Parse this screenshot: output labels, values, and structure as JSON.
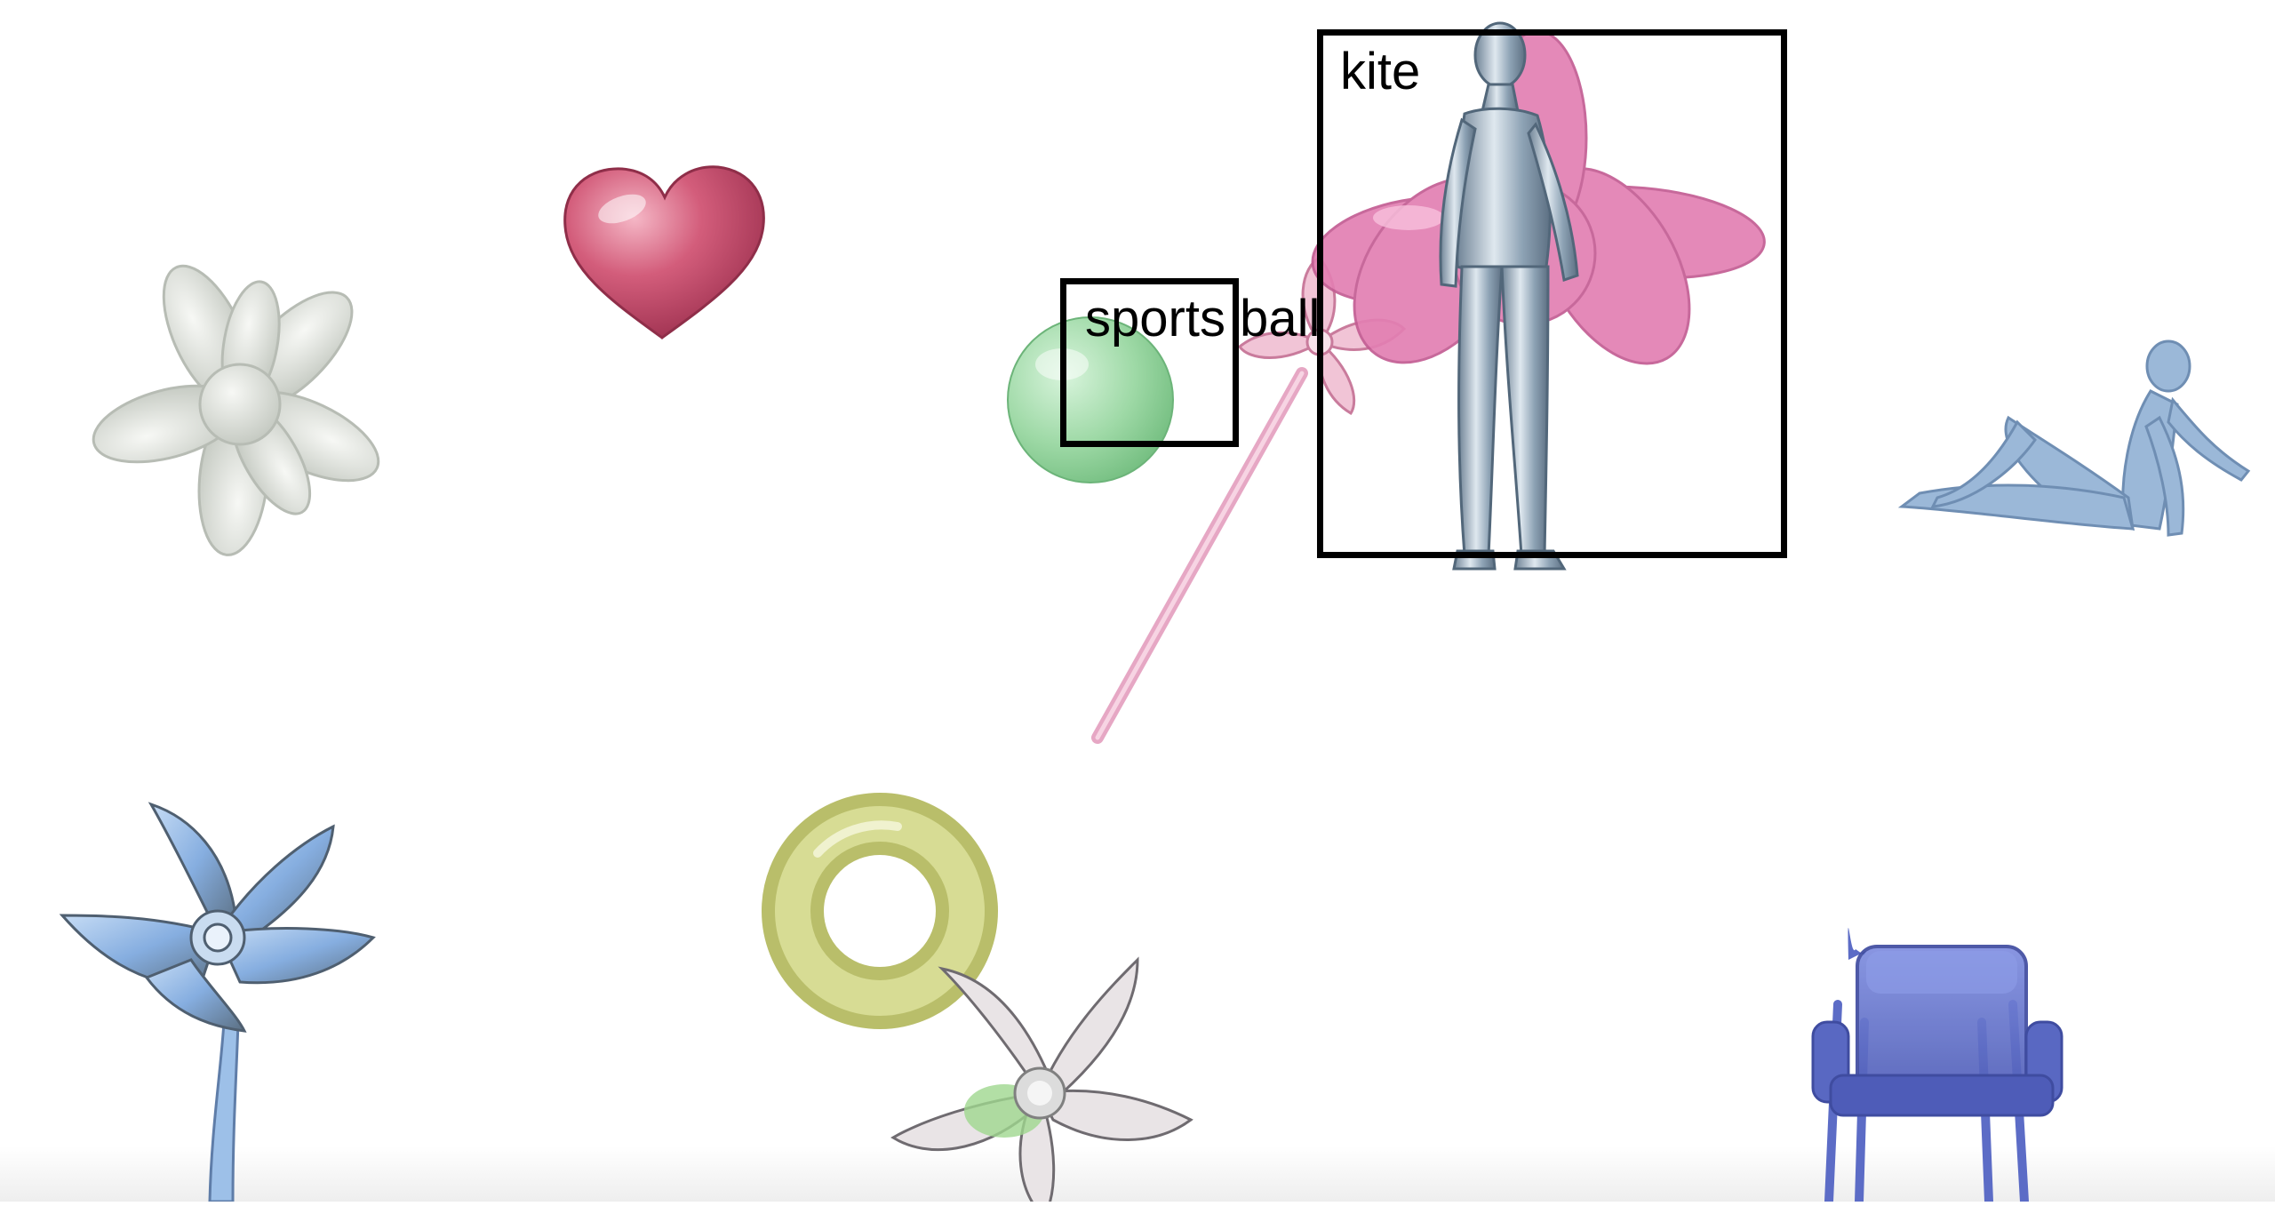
{
  "scene": {
    "background": "#ffffff",
    "objects": [
      {
        "name": "star-flower-white",
        "color": "#dcdfd8"
      },
      {
        "name": "heart",
        "color": "#c8506e"
      },
      {
        "name": "green-ball",
        "color": "#9ed9a6"
      },
      {
        "name": "pink-pinwheel",
        "color": "#e6a7c4"
      },
      {
        "name": "pink-star",
        "color": "#e27fb2"
      },
      {
        "name": "silver-figure",
        "color": "#a9b9c6"
      },
      {
        "name": "reclining-figure",
        "color": "#9bb8d8"
      },
      {
        "name": "blue-flower",
        "color": "#9dc0e8"
      },
      {
        "name": "yellow-ring",
        "color": "#c9cf83"
      },
      {
        "name": "white-star-flower",
        "color": "#e9e4e6"
      },
      {
        "name": "blue-chair",
        "color": "#5c6cc6"
      }
    ]
  },
  "detections": [
    {
      "label": "sports ball"
    },
    {
      "label": "kite"
    }
  ]
}
